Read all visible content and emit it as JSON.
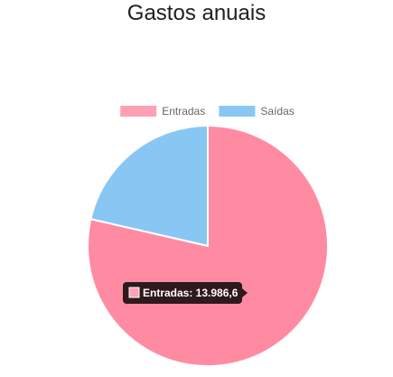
{
  "page": {
    "title": "Gastos anuais"
  },
  "chart_data": {
    "type": "pie",
    "title": "Gastos anuais",
    "categories": [
      "Entradas",
      "Saídas"
    ],
    "values": [
      13986.6,
      3810
    ],
    "colors": [
      "#ff8ba3",
      "#88c7f3"
    ],
    "legend_colors": [
      "#ffa0b4",
      "#88c7f3"
    ],
    "legend": {
      "placement": "top",
      "entries": [
        "Entradas",
        "Saídas"
      ]
    },
    "tooltip": {
      "text": "Entradas: 13.986,6",
      "series_index": 0
    }
  }
}
